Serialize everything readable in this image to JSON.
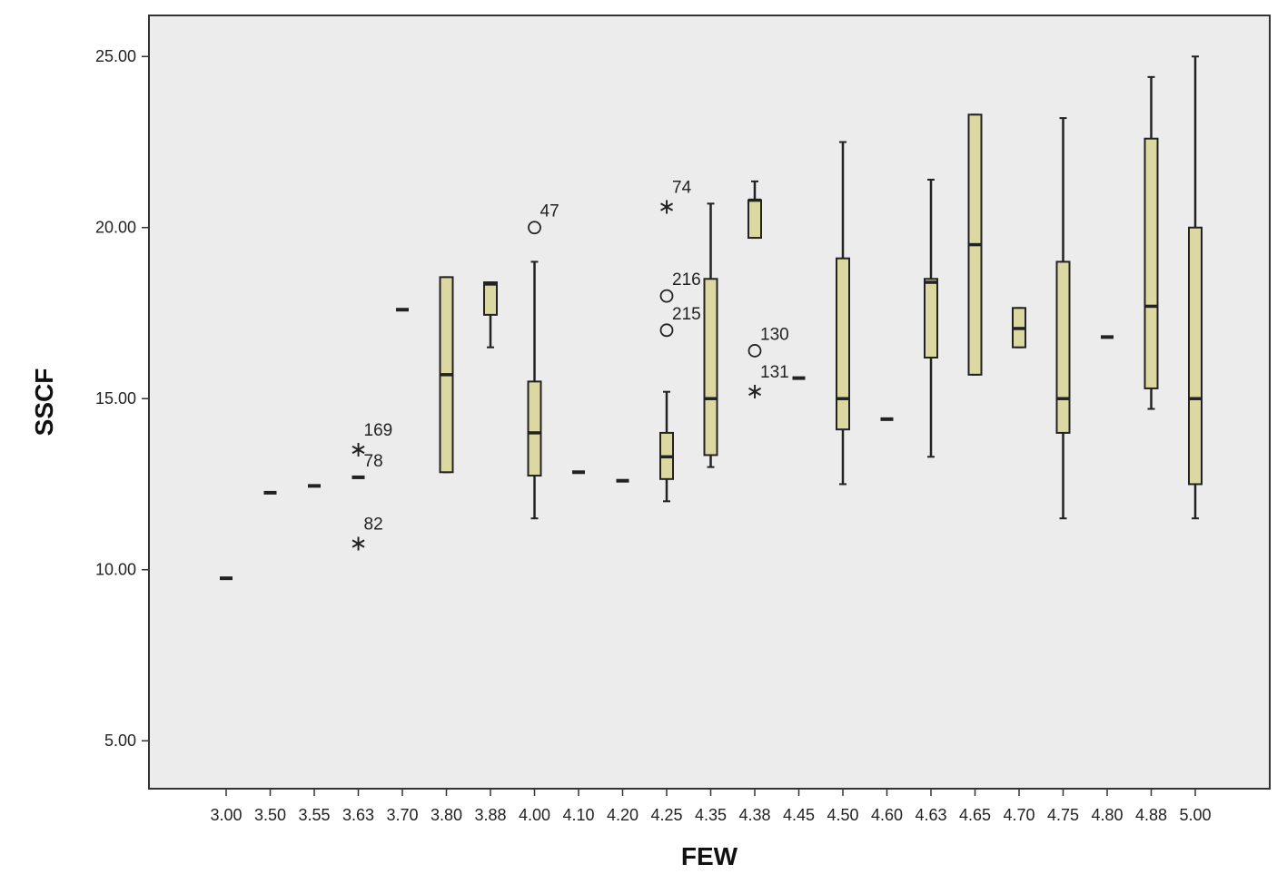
{
  "colors": {
    "plot_background": "#ececec",
    "box_fill": "#dcd8a2",
    "box_stroke": "#222222",
    "outlier": "#222222"
  },
  "chart_data": {
    "type": "boxplot",
    "title": "",
    "xlabel": "FEW",
    "ylabel": "SSCF",
    "ylim": [
      3.6,
      26.2
    ],
    "yticks": [
      {
        "value": 5,
        "label": "5.00"
      },
      {
        "value": 10,
        "label": "10.00"
      },
      {
        "value": 15,
        "label": "15.00"
      },
      {
        "value": 20,
        "label": "20.00"
      },
      {
        "value": 25,
        "label": "25.00"
      }
    ],
    "grid": false,
    "categories": [
      "3.00",
      "3.50",
      "3.55",
      "3.63",
      "3.70",
      "3.80",
      "3.88",
      "4.00",
      "4.10",
      "4.20",
      "4.25",
      "4.35",
      "4.38",
      "4.45",
      "4.50",
      "4.60",
      "4.63",
      "4.65",
      "4.70",
      "4.75",
      "4.80",
      "4.88",
      "5.00"
    ],
    "boxes": [
      {
        "category": "3.00",
        "min": 9.75,
        "q1": 9.75,
        "median": 9.75,
        "q3": 9.75,
        "max": 9.75
      },
      {
        "category": "3.50",
        "min": 12.25,
        "q1": 12.25,
        "median": 12.25,
        "q3": 12.25,
        "max": 12.25
      },
      {
        "category": "3.55",
        "min": 12.45,
        "q1": 12.45,
        "median": 12.45,
        "q3": 12.45,
        "max": 12.45
      },
      {
        "category": "3.63",
        "min": 12.7,
        "q1": 12.7,
        "median": 12.7,
        "q3": 12.7,
        "max": 12.7
      },
      {
        "category": "3.70",
        "min": 17.6,
        "q1": 17.6,
        "median": 17.6,
        "q3": 17.6,
        "max": 17.6
      },
      {
        "category": "3.80",
        "min": 12.85,
        "q1": 12.85,
        "median": 15.7,
        "q3": 18.55,
        "max": 18.55
      },
      {
        "category": "3.88",
        "min": 16.5,
        "q1": 17.45,
        "median": 18.35,
        "q3": 18.4,
        "max": 18.4
      },
      {
        "category": "4.00",
        "min": 11.5,
        "q1": 12.75,
        "median": 14.0,
        "q3": 15.5,
        "max": 19.0
      },
      {
        "category": "4.10",
        "min": 12.85,
        "q1": 12.85,
        "median": 12.85,
        "q3": 12.85,
        "max": 12.85
      },
      {
        "category": "4.20",
        "min": 12.6,
        "q1": 12.6,
        "median": 12.6,
        "q3": 12.6,
        "max": 12.6
      },
      {
        "category": "4.25",
        "min": 12.0,
        "q1": 12.65,
        "median": 13.3,
        "q3": 14.0,
        "max": 15.2
      },
      {
        "category": "4.35",
        "min": 13.0,
        "q1": 13.35,
        "median": 15.0,
        "q3": 18.5,
        "max": 20.7
      },
      {
        "category": "4.38",
        "min": 19.7,
        "q1": 19.7,
        "median": 20.8,
        "q3": 20.8,
        "max": 21.35
      },
      {
        "category": "4.45",
        "min": 15.6,
        "q1": 15.6,
        "median": 15.6,
        "q3": 15.6,
        "max": 15.6
      },
      {
        "category": "4.50",
        "min": 12.5,
        "q1": 14.1,
        "median": 15.0,
        "q3": 19.1,
        "max": 22.5
      },
      {
        "category": "4.60",
        "min": 14.4,
        "q1": 14.4,
        "median": 14.4,
        "q3": 14.4,
        "max": 14.4
      },
      {
        "category": "4.63",
        "min": 13.3,
        "q1": 16.2,
        "median": 18.4,
        "q3": 18.5,
        "max": 21.4
      },
      {
        "category": "4.65",
        "min": 15.7,
        "q1": 15.7,
        "median": 19.5,
        "q3": 23.3,
        "max": 23.3
      },
      {
        "category": "4.70",
        "min": 16.5,
        "q1": 16.5,
        "median": 17.05,
        "q3": 17.65,
        "max": 17.65
      },
      {
        "category": "4.75",
        "min": 11.5,
        "q1": 14.0,
        "median": 15.0,
        "q3": 19.0,
        "max": 23.2
      },
      {
        "category": "4.80",
        "min": 16.8,
        "q1": 16.8,
        "median": 16.8,
        "q3": 16.8,
        "max": 16.8
      },
      {
        "category": "4.88",
        "min": 14.7,
        "q1": 15.3,
        "median": 17.7,
        "q3": 22.6,
        "max": 24.4
      },
      {
        "category": "5.00",
        "min": 11.5,
        "q1": 12.5,
        "median": 15.0,
        "q3": 20.0,
        "max": 25.0
      }
    ],
    "outliers": [
      {
        "category": "3.63",
        "value": 13.6,
        "marker": "star",
        "label": "169"
      },
      {
        "category": "3.63",
        "value": 10.85,
        "marker": "star",
        "label": "82"
      },
      {
        "category": "3.63",
        "value": 12.7,
        "marker": "none",
        "label": "78"
      },
      {
        "category": "4.00",
        "value": 20.0,
        "marker": "circle",
        "label": "47"
      },
      {
        "category": "4.25",
        "value": 20.7,
        "marker": "star",
        "label": "74"
      },
      {
        "category": "4.25",
        "value": 18.0,
        "marker": "circle",
        "label": "216"
      },
      {
        "category": "4.25",
        "value": 17.0,
        "marker": "circle",
        "label": "215"
      },
      {
        "category": "4.38",
        "value": 16.4,
        "marker": "circle",
        "label": "130"
      },
      {
        "category": "4.38",
        "value": 15.3,
        "marker": "star",
        "label": "131"
      }
    ]
  }
}
